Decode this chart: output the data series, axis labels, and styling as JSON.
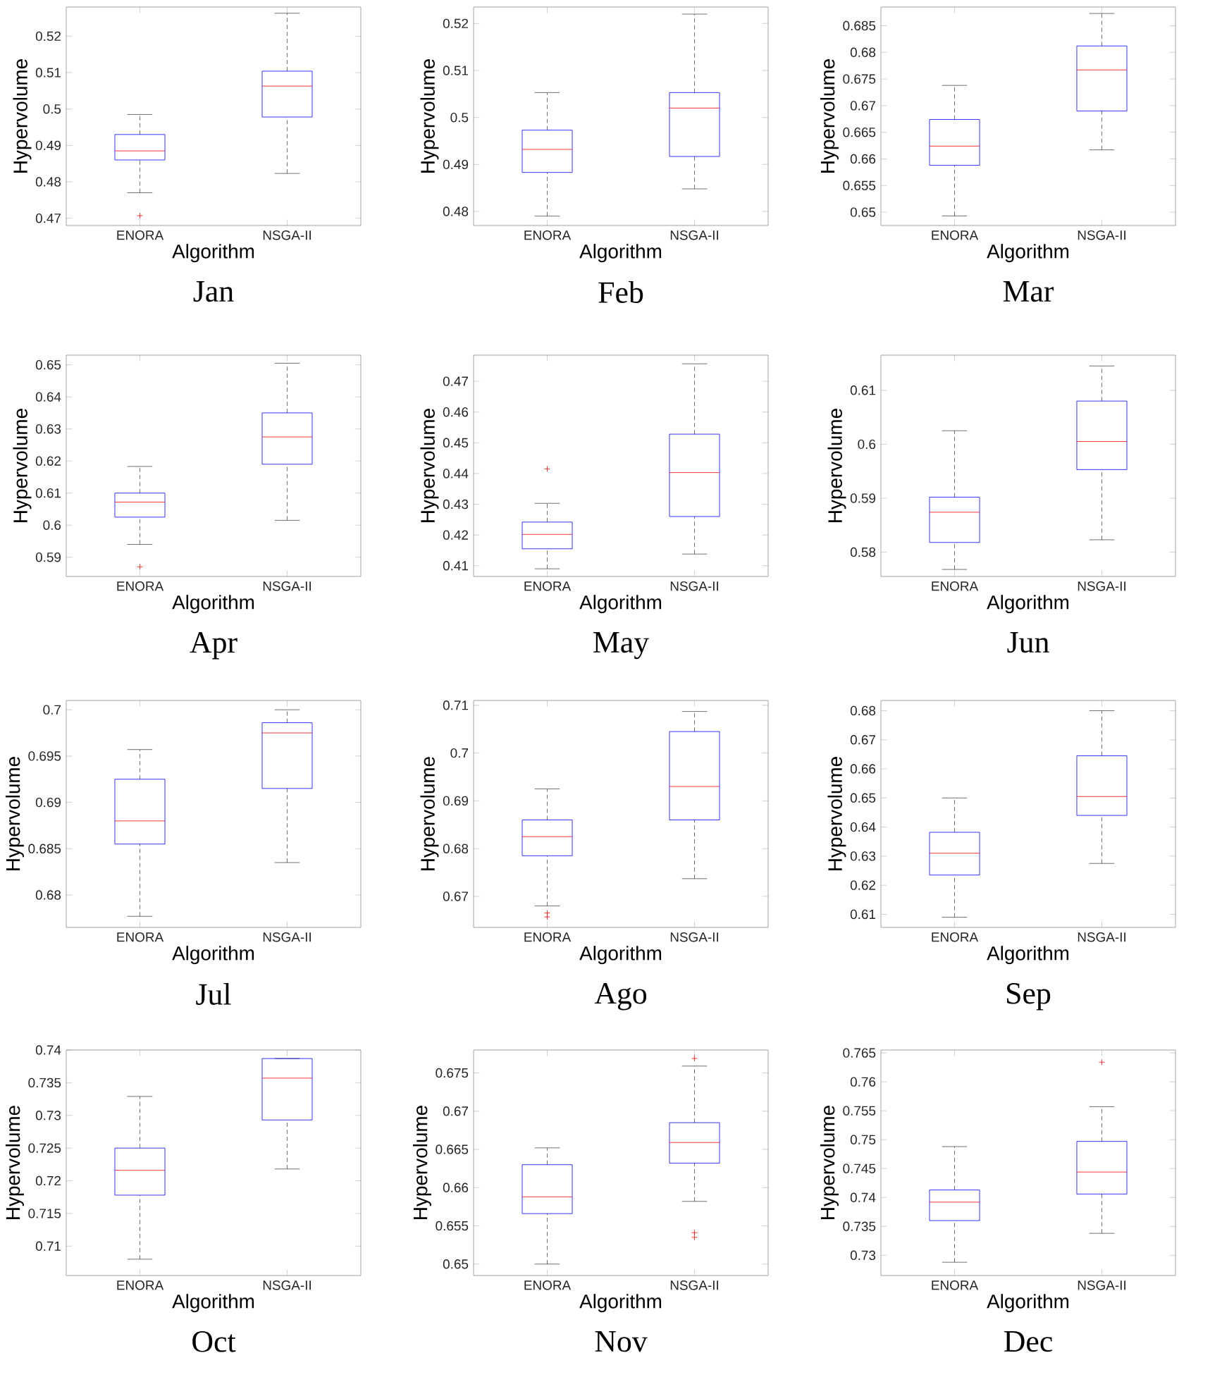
{
  "chart_data": [
    {
      "type": "box",
      "title": "Jan",
      "xlabel": "Algorithm",
      "ylabel": "Hypervolume",
      "categories": [
        "ENORA",
        "NSGA-II"
      ],
      "color": "#0000ff",
      "ylim": [
        0.468,
        0.528
      ],
      "yticks": [
        0.47,
        0.48,
        0.49,
        0.5,
        0.51,
        0.52
      ],
      "boxes": [
        {
          "low": 0.477,
          "q1": 0.486,
          "median": 0.4885,
          "q3": 0.493,
          "high": 0.4985,
          "outliers": [
            0.4707
          ]
        },
        {
          "low": 0.4823,
          "q1": 0.4978,
          "median": 0.5063,
          "q3": 0.5104,
          "high": 0.5263
        }
      ]
    },
    {
      "type": "box",
      "title": "Feb",
      "xlabel": "Algorithm",
      "ylabel": "Hypervolume",
      "categories": [
        "ENORA",
        "NSGA-II"
      ],
      "color": "#0000ff",
      "ylim": [
        0.477,
        0.5235
      ],
      "yticks": [
        0.48,
        0.49,
        0.5,
        0.51,
        0.52
      ],
      "boxes": [
        {
          "low": 0.479,
          "q1": 0.4883,
          "median": 0.4932,
          "q3": 0.4973,
          "high": 0.5053
        },
        {
          "low": 0.4848,
          "q1": 0.4917,
          "median": 0.502,
          "q3": 0.5053,
          "high": 0.522
        }
      ]
    },
    {
      "type": "box",
      "title": "Mar",
      "xlabel": "Algorithm",
      "ylabel": "Hypervolume",
      "categories": [
        "ENORA",
        "NSGA-II"
      ],
      "color": "#0000ff",
      "ylim": [
        0.6475,
        0.6885
      ],
      "yticks": [
        0.65,
        0.655,
        0.66,
        0.665,
        0.67,
        0.675,
        0.68,
        0.685
      ],
      "boxes": [
        {
          "low": 0.6493,
          "q1": 0.6588,
          "median": 0.6624,
          "q3": 0.6674,
          "high": 0.6738
        },
        {
          "low": 0.6617,
          "q1": 0.669,
          "median": 0.6767,
          "q3": 0.6812,
          "high": 0.6873
        }
      ]
    },
    {
      "type": "box",
      "title": "Apr",
      "xlabel": "Algorithm",
      "ylabel": "Hypervolume",
      "categories": [
        "ENORA",
        "NSGA-II"
      ],
      "color": "#0000ff",
      "ylim": [
        0.584,
        0.653
      ],
      "yticks": [
        0.59,
        0.6,
        0.61,
        0.62,
        0.63,
        0.64,
        0.65
      ],
      "boxes": [
        {
          "low": 0.594,
          "q1": 0.6025,
          "median": 0.6072,
          "q3": 0.61,
          "high": 0.6183,
          "outliers": [
            0.587
          ]
        },
        {
          "low": 0.6015,
          "q1": 0.619,
          "median": 0.6275,
          "q3": 0.635,
          "high": 0.6505
        }
      ]
    },
    {
      "type": "box",
      "title": "May",
      "xlabel": "Algorithm",
      "ylabel": "Hypervolume",
      "categories": [
        "ENORA",
        "NSGA-II"
      ],
      "color": "#0000ff",
      "ylim": [
        0.4065,
        0.4785
      ],
      "yticks": [
        0.41,
        0.42,
        0.43,
        0.44,
        0.45,
        0.46,
        0.47
      ],
      "boxes": [
        {
          "low": 0.409,
          "q1": 0.4155,
          "median": 0.4202,
          "q3": 0.4242,
          "high": 0.4303,
          "outliers": [
            0.4415
          ]
        },
        {
          "low": 0.4138,
          "q1": 0.426,
          "median": 0.4403,
          "q3": 0.4528,
          "high": 0.4757
        }
      ]
    },
    {
      "type": "box",
      "title": "Jun",
      "xlabel": "Algorithm",
      "ylabel": "Hypervolume",
      "categories": [
        "ENORA",
        "NSGA-II"
      ],
      "color": "#0000ff",
      "ylim": [
        0.5755,
        0.6165
      ],
      "yticks": [
        0.58,
        0.59,
        0.6,
        0.61
      ],
      "boxes": [
        {
          "low": 0.5768,
          "q1": 0.5818,
          "median": 0.5874,
          "q3": 0.5902,
          "high": 0.6025
        },
        {
          "low": 0.5823,
          "q1": 0.5953,
          "median": 0.6005,
          "q3": 0.608,
          "high": 0.6145
        }
      ]
    },
    {
      "type": "box",
      "title": "Jul",
      "xlabel": "Algorithm",
      "ylabel": "Hypervolume",
      "categories": [
        "ENORA",
        "NSGA-II"
      ],
      "color": "#0000ff",
      "ylim": [
        0.6765,
        0.701
      ],
      "yticks": [
        0.68,
        0.685,
        0.69,
        0.695,
        0.7
      ],
      "boxes": [
        {
          "low": 0.6777,
          "q1": 0.6855,
          "median": 0.688,
          "q3": 0.6925,
          "high": 0.6957
        },
        {
          "low": 0.6835,
          "q1": 0.6915,
          "median": 0.6975,
          "q3": 0.6986,
          "high": 0.7
        }
      ]
    },
    {
      "type": "box",
      "title": "Ago",
      "xlabel": "Algorithm",
      "ylabel": "Hypervolume",
      "categories": [
        "ENORA",
        "NSGA-II"
      ],
      "color": "#0000ff",
      "ylim": [
        0.6635,
        0.711
      ],
      "yticks": [
        0.67,
        0.68,
        0.69,
        0.7,
        0.71
      ],
      "boxes": [
        {
          "low": 0.668,
          "q1": 0.6785,
          "median": 0.6825,
          "q3": 0.686,
          "high": 0.6925,
          "outliers": [
            0.6665,
            0.6657
          ]
        },
        {
          "low": 0.6737,
          "q1": 0.686,
          "median": 0.693,
          "q3": 0.7045,
          "high": 0.7087
        }
      ]
    },
    {
      "type": "box",
      "title": "Sep",
      "xlabel": "Algorithm",
      "ylabel": "Hypervolume",
      "categories": [
        "ENORA",
        "NSGA-II"
      ],
      "color": "#0000ff",
      "ylim": [
        0.6055,
        0.6835
      ],
      "yticks": [
        0.61,
        0.62,
        0.63,
        0.64,
        0.65,
        0.66,
        0.67,
        0.68
      ],
      "boxes": [
        {
          "low": 0.609,
          "q1": 0.6235,
          "median": 0.631,
          "q3": 0.6382,
          "high": 0.65
        },
        {
          "low": 0.6275,
          "q1": 0.644,
          "median": 0.6505,
          "q3": 0.6645,
          "high": 0.68
        }
      ]
    },
    {
      "type": "box",
      "title": "Oct",
      "xlabel": "Algorithm",
      "ylabel": "Hypervolume",
      "categories": [
        "ENORA",
        "NSGA-II"
      ],
      "color": "#0000ff",
      "ylim": [
        0.7055,
        0.74
      ],
      "yticks": [
        0.71,
        0.715,
        0.72,
        0.725,
        0.73,
        0.735,
        0.74
      ],
      "boxes": [
        {
          "low": 0.708,
          "q1": 0.7178,
          "median": 0.7216,
          "q3": 0.725,
          "high": 0.7329
        },
        {
          "low": 0.7218,
          "q1": 0.7293,
          "median": 0.7357,
          "q3": 0.7387,
          "high": 0.7387
        }
      ]
    },
    {
      "type": "box",
      "title": "Nov",
      "xlabel": "Algorithm",
      "ylabel": "Hypervolume",
      "categories": [
        "ENORA",
        "NSGA-II"
      ],
      "color": "#0000ff",
      "ylim": [
        0.6485,
        0.678
      ],
      "yticks": [
        0.65,
        0.655,
        0.66,
        0.665,
        0.67,
        0.675
      ],
      "boxes": [
        {
          "low": 0.65,
          "q1": 0.6566,
          "median": 0.6588,
          "q3": 0.663,
          "high": 0.6652
        },
        {
          "low": 0.6582,
          "q1": 0.6632,
          "median": 0.6659,
          "q3": 0.6685,
          "high": 0.6759,
          "outliers": [
            0.6769,
            0.6541,
            0.6535
          ]
        }
      ]
    },
    {
      "type": "box",
      "title": "Dec",
      "xlabel": "Algorithm",
      "ylabel": "Hypervolume",
      "categories": [
        "ENORA",
        "NSGA-II"
      ],
      "color": "#0000ff",
      "ylim": [
        0.7265,
        0.7655
      ],
      "yticks": [
        0.73,
        0.735,
        0.74,
        0.745,
        0.75,
        0.755,
        0.76,
        0.765
      ],
      "boxes": [
        {
          "low": 0.7288,
          "q1": 0.736,
          "median": 0.7392,
          "q3": 0.7413,
          "high": 0.7488
        },
        {
          "low": 0.7338,
          "q1": 0.7406,
          "median": 0.7444,
          "q3": 0.7497,
          "high": 0.7557,
          "outliers": [
            0.7634
          ]
        }
      ]
    }
  ]
}
